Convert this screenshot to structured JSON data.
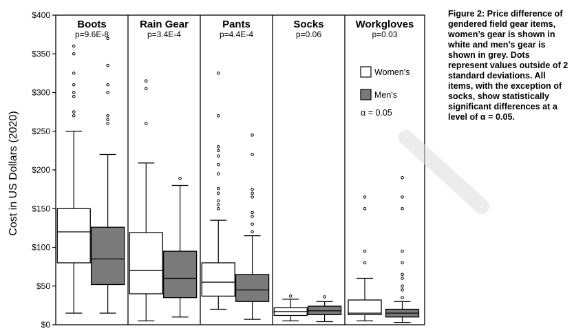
{
  "chart_data": {
    "type": "box",
    "ylabel": "Cost in US Dollars (2020)",
    "ylim": [
      0,
      400
    ],
    "yticks": [
      0,
      50,
      100,
      150,
      200,
      250,
      300,
      350,
      400
    ],
    "ytick_labels": [
      "$0",
      "$50",
      "$100",
      "$150",
      "$200",
      "$250",
      "$300",
      "$350",
      "$400"
    ],
    "grid": false,
    "legend_position": "inside right panel (Workgloves)",
    "series": [
      {
        "name": "Women's",
        "color": "#ffffff"
      },
      {
        "name": "Men's",
        "color": "#7a7a7c"
      }
    ],
    "legend_note": "α = 0.05",
    "categories": [
      {
        "name": "Boots",
        "pvalue": "p=9.6E-8",
        "women": {
          "whisker_low": 15,
          "q1": 80,
          "median": 120,
          "q3": 150,
          "whisker_high": 250,
          "outliers": [
            360,
            350,
            325,
            310,
            300,
            295,
            275,
            270
          ]
        },
        "men": {
          "whisker_low": 15,
          "q1": 52,
          "median": 85,
          "q3": 126,
          "whisker_high": 220,
          "outliers": [
            370,
            335,
            310,
            300,
            270,
            265,
            260
          ]
        }
      },
      {
        "name": "Rain Gear",
        "pvalue": "p=3.4E-4",
        "women": {
          "whisker_low": 5,
          "q1": 40,
          "median": 70,
          "q3": 119,
          "whisker_high": 209,
          "outliers": [
            315,
            305,
            260
          ]
        },
        "men": {
          "whisker_low": 10,
          "q1": 35,
          "median": 60,
          "q3": 95,
          "whisker_high": 180,
          "outliers": [
            189
          ]
        }
      },
      {
        "name": "Pants",
        "pvalue": "p=4.4E-4",
        "women": {
          "whisker_low": 20,
          "q1": 37,
          "median": 55,
          "q3": 80,
          "whisker_high": 135,
          "outliers": [
            325,
            270,
            230,
            225,
            218,
            207,
            195,
            176,
            170,
            160,
            155,
            150
          ]
        },
        "men": {
          "whisker_low": 7,
          "q1": 30,
          "median": 45,
          "q3": 65,
          "whisker_high": 115,
          "outliers": [
            245,
            220,
            175,
            170,
            165,
            145,
            140,
            130,
            120
          ]
        }
      },
      {
        "name": "Socks",
        "pvalue": "p=0.06",
        "women": {
          "whisker_low": 5,
          "q1": 12,
          "median": 17,
          "q3": 22,
          "whisker_high": 33,
          "outliers": [
            37
          ]
        },
        "men": {
          "whisker_low": 4,
          "q1": 13,
          "median": 18,
          "q3": 24,
          "whisker_high": 30,
          "outliers": [
            36
          ]
        }
      },
      {
        "name": "Workgloves",
        "pvalue": "p=0.03",
        "women": {
          "whisker_low": 5,
          "q1": 13,
          "median": 15,
          "q3": 32,
          "whisker_high": 60,
          "outliers": [
            165,
            150,
            95,
            80
          ]
        },
        "men": {
          "whisker_low": 3,
          "q1": 10,
          "median": 15,
          "q3": 20,
          "whisker_high": 30,
          "outliers": [
            190,
            165,
            150,
            95,
            80,
            65,
            60,
            50,
            45,
            35
          ]
        }
      }
    ]
  },
  "caption": "Figure 2: Price difference of gendered field gear items, women’s gear is shown in white and men’s gear is shown in grey. Dots represent values outside of 2 standard deviations. All items, with the exception of socks, show statistically significant differences at a level of α = 0.05."
}
